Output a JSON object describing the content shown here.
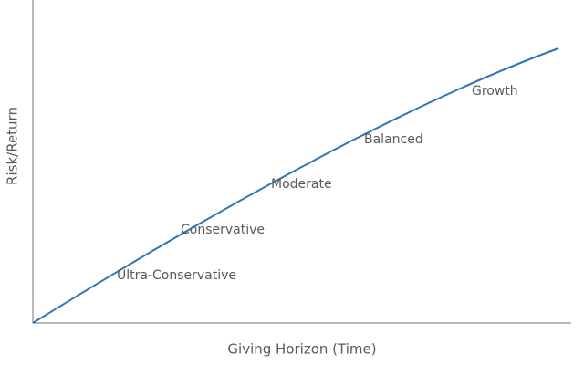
{
  "y_axis_label": "Risk/Return",
  "x_axis_label": "Giving Horizon (Time)",
  "curve_labels": [
    "Ultra-Conservative",
    "Conservative",
    "Moderate",
    "Balanced",
    "Growth"
  ]
}
